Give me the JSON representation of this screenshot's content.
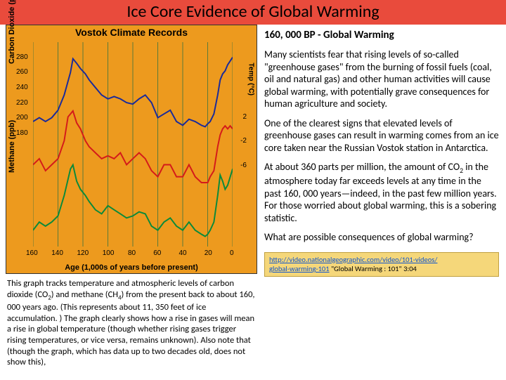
{
  "header": {
    "title": "Ice Core Evidence of Global Warming"
  },
  "chart": {
    "type": "line",
    "title": "Vostok Climate Records",
    "background_color": "#ed9a1e",
    "grid_color": "#5a7a3a",
    "line_width": 2,
    "x": {
      "label": "Age (1,000s of years before present)",
      "min": 0,
      "max": 160,
      "ticks": [
        160,
        140,
        120,
        100,
        80,
        60,
        40,
        20,
        0
      ],
      "reversed": true
    },
    "y_left_co2": {
      "label": "Carbon Dioxide (ppm)",
      "min": 180,
      "max": 300,
      "ticks": [
        180,
        200,
        220,
        240,
        260,
        280
      ],
      "color": "#1a2a9a"
    },
    "y_left_ch4": {
      "label": "Methane (ppb)",
      "min": 300,
      "max": 720,
      "color": "#0a8a3a"
    },
    "y_right_temp": {
      "label": "Temp (°C)",
      "min": -10,
      "max": 4,
      "ticks": [
        2,
        -2,
        -6
      ],
      "color": "#d41a1a"
    },
    "series": [
      {
        "name": "CO2",
        "color": "#1a2a9a",
        "x": [
          160,
          155,
          150,
          145,
          140,
          135,
          130,
          128,
          125,
          122,
          118,
          115,
          110,
          105,
          100,
          95,
          90,
          85,
          80,
          75,
          70,
          65,
          60,
          55,
          50,
          45,
          40,
          35,
          30,
          25,
          22,
          20,
          18,
          15,
          12,
          10,
          8,
          6,
          4,
          2,
          0
        ],
        "y": [
          195,
          200,
          195,
          200,
          210,
          230,
          260,
          278,
          272,
          265,
          258,
          250,
          240,
          230,
          225,
          228,
          225,
          220,
          218,
          225,
          230,
          220,
          200,
          205,
          210,
          195,
          190,
          198,
          195,
          190,
          188,
          192,
          195,
          205,
          230,
          250,
          258,
          262,
          270,
          275,
          280
        ]
      },
      {
        "name": "Temp",
        "color": "#d41a1a",
        "x": [
          160,
          155,
          150,
          145,
          140,
          135,
          132,
          128,
          125,
          122,
          118,
          115,
          110,
          105,
          100,
          95,
          90,
          85,
          80,
          75,
          70,
          65,
          60,
          55,
          50,
          45,
          40,
          35,
          30,
          25,
          22,
          20,
          18,
          15,
          12,
          10,
          8,
          6,
          4,
          2,
          0
        ],
        "y": [
          -6,
          -5,
          -7,
          -6,
          -5,
          -2,
          2,
          3,
          1,
          0,
          -2,
          -3,
          -4,
          -5,
          -4.5,
          -5,
          -4,
          -6,
          -5,
          -4,
          -5,
          -7,
          -8,
          -6,
          -6,
          -8,
          -8,
          -6,
          -8,
          -9,
          -9,
          -9,
          -8,
          -7,
          -3,
          -1,
          0,
          0.5,
          0,
          0.5,
          0
        ]
      },
      {
        "name": "CH4",
        "color": "#0a8a3a",
        "x": [
          160,
          155,
          150,
          145,
          140,
          135,
          130,
          128,
          125,
          122,
          118,
          115,
          110,
          105,
          100,
          95,
          90,
          85,
          80,
          75,
          70,
          65,
          60,
          55,
          50,
          45,
          40,
          35,
          30,
          25,
          22,
          20,
          18,
          15,
          12,
          10,
          8,
          6,
          4,
          2,
          0
        ],
        "y": [
          380,
          420,
          400,
          420,
          450,
          550,
          680,
          700,
          620,
          580,
          550,
          520,
          480,
          460,
          500,
          480,
          460,
          440,
          450,
          470,
          460,
          400,
          380,
          420,
          440,
          400,
          380,
          420,
          380,
          360,
          350,
          360,
          380,
          420,
          550,
          650,
          620,
          580,
          600,
          640,
          680
        ]
      }
    ]
  },
  "caption": {
    "text_html": "This graph tracks temperature and atmospheric levels of carbon dioxide (CO<sub>2</sub>) and methane (CH<sub>4</sub>) from the present back to about 160, 000 years ago. (This represents about 11, 350 feet of ice accumulation. ) The graph clearly shows how a rise in gases will mean a rise in global temperature (though whether rising gases trigger rising temperatures, or vice versa, remains unknown). Also note that (though the graph, which has data up to two decades old, does not show this),"
  },
  "right": {
    "title": "160, 000 BP - Global Warming",
    "p1": "Many scientists fear that rising levels of so-called \"greenhouse gases\" from the burning of fossil fuels (coal, oil and natural gas) and other human activities will cause global warming, with potentially grave consequences for human agriculture and society.",
    "p2": "One of the clearest signs that elevated levels of greenhouse gases can result in warming comes from an ice core taken near the Russian Vostok station in Antarctica.",
    "p3_html": "At about 360 parts per million, the amount of CO<sub>2</sub> in the atmosphere today far exceeds levels at any time in the past 160, 000 years—indeed, in the past few million years. For those worried about global warming, this is a sobering statistic.",
    "p4": "What are possible consequences of global warming?",
    "link": {
      "url_line1": "http://video.nationalgeographic.com/video/101-videos/",
      "url_line2": "global-warming-101",
      "tail": "  \"Global Warming : 101\" 3:04"
    }
  }
}
